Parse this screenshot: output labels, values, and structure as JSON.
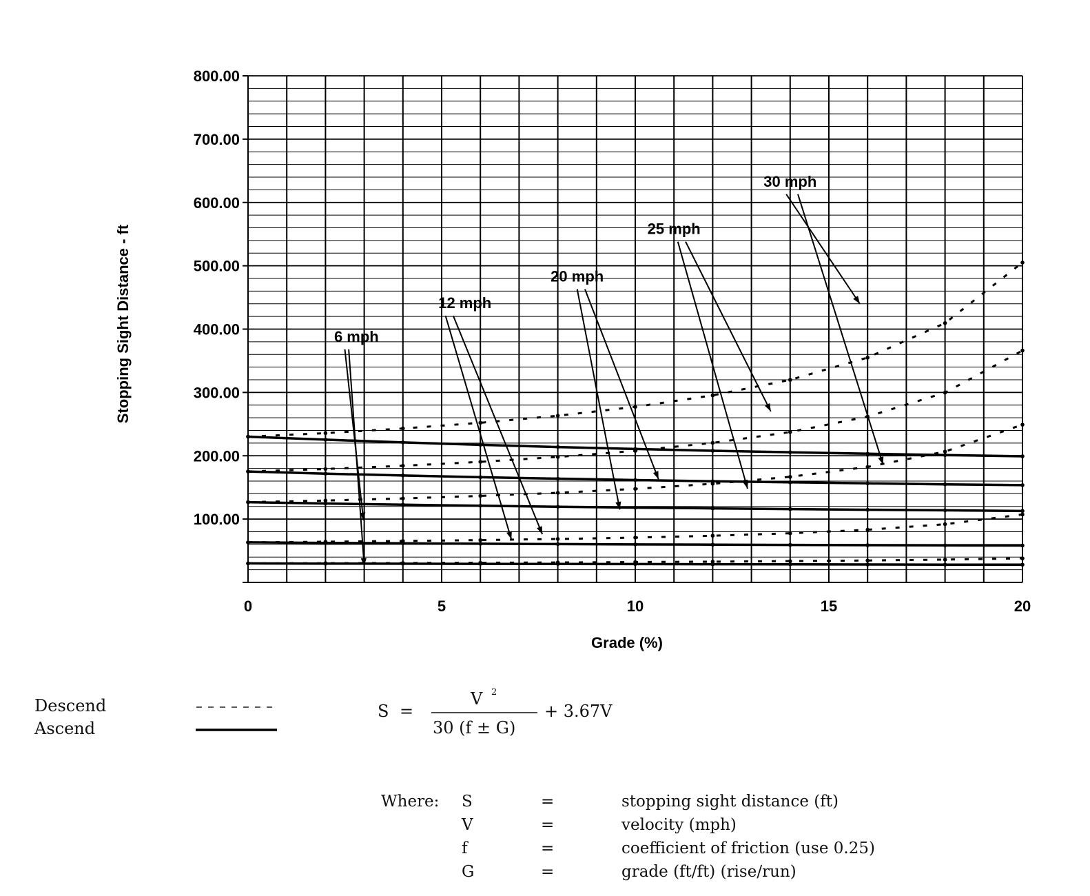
{
  "chart_data": {
    "type": "line",
    "ylabel": "Stopping Sight Distance - ft",
    "xlabel": "Grade (%)",
    "xlim": [
      0,
      20
    ],
    "ylim": [
      0,
      800
    ],
    "x_ticks": [
      "0",
      "5",
      "10",
      "15",
      "20"
    ],
    "y_ticks": [
      "100.00",
      "200.00",
      "300.00",
      "400.00",
      "500.00",
      "600.00",
      "700.00",
      "800.00"
    ],
    "grid": true,
    "x": [
      0,
      2,
      4,
      6,
      8,
      10,
      12,
      14,
      16,
      18,
      20
    ],
    "series": [
      {
        "name": "6 mph",
        "style": "Descend",
        "values": [
          30.0,
          30.3,
          30.6,
          31.0,
          31.5,
          32.1,
          32.8,
          33.6,
          34.6,
          36.0,
          38.0
        ]
      },
      {
        "name": "6 mph",
        "style": "Ascend",
        "values": [
          30.0,
          29.7,
          29.5,
          29.3,
          29.1,
          28.9,
          28.7,
          28.5,
          28.3,
          28.1,
          28.0
        ]
      },
      {
        "name": "12 mph",
        "style": "Descend",
        "values": [
          63.2,
          64.2,
          65.4,
          66.8,
          68.6,
          70.8,
          73.7,
          77.6,
          83.2,
          91.9,
          107.2
        ]
      },
      {
        "name": "12 mph",
        "style": "Ascend",
        "values": [
          63.2,
          62.4,
          61.7,
          61.1,
          60.5,
          60.0,
          59.6,
          59.2,
          58.8,
          58.5,
          58.2
        ]
      },
      {
        "name": "20 mph",
        "style": "Descend",
        "values": [
          126.7,
          129.3,
          132.6,
          136.6,
          141.5,
          147.7,
          155.8,
          166.7,
          182.3,
          206.6,
          249.1
        ]
      },
      {
        "name": "20 mph",
        "style": "Ascend",
        "values": [
          126.7,
          124.6,
          122.7,
          121.0,
          119.5,
          118.1,
          116.9,
          115.8,
          114.7,
          113.8,
          112.8
        ]
      },
      {
        "name": "25 mph",
        "style": "Descend",
        "values": [
          175.1,
          179.1,
          184.2,
          190.4,
          198.1,
          207.8,
          220.4,
          237.4,
          261.8,
          299.7,
          366.1
        ]
      },
      {
        "name": "25 mph",
        "style": "Ascend",
        "values": [
          175.1,
          171.8,
          168.8,
          166.1,
          163.8,
          161.6,
          159.7,
          158.0,
          156.4,
          154.9,
          153.6
        ]
      },
      {
        "name": "30 mph",
        "style": "Descend",
        "values": [
          230.1,
          235.8,
          243.1,
          252.1,
          263.2,
          277.2,
          295.4,
          319.9,
          355.0,
          409.5,
          505.1
        ]
      },
      {
        "name": "30 mph",
        "style": "Ascend",
        "values": [
          230.1,
          225.4,
          221.1,
          217.2,
          213.8,
          210.7,
          207.9,
          205.5,
          203.2,
          201.1,
          199.2
        ]
      }
    ]
  },
  "speed_labels": [
    "6 mph",
    "12 mph",
    "20 mph",
    "25 mph",
    "30 mph"
  ],
  "legend": {
    "descend_label": "Descend",
    "ascend_label": "Ascend"
  },
  "formula": {
    "lhs": "S",
    "equals": "=",
    "numerator": "V",
    "exponent": "2",
    "denominator": "30 (f  ±  G)",
    "tail": "+ 3.67V"
  },
  "where": {
    "label": "Where:",
    "rows": [
      {
        "symbol": "S",
        "eq": "=",
        "text": "stopping sight distance (ft)"
      },
      {
        "symbol": "V",
        "eq": "=",
        "text": "velocity (mph)"
      },
      {
        "symbol": "f",
        "eq": "=",
        "text": "coefficient of friction (use 0.25)"
      },
      {
        "symbol": "G",
        "eq": "=",
        "text": "grade (ft/ft) (rise/run)"
      }
    ]
  }
}
